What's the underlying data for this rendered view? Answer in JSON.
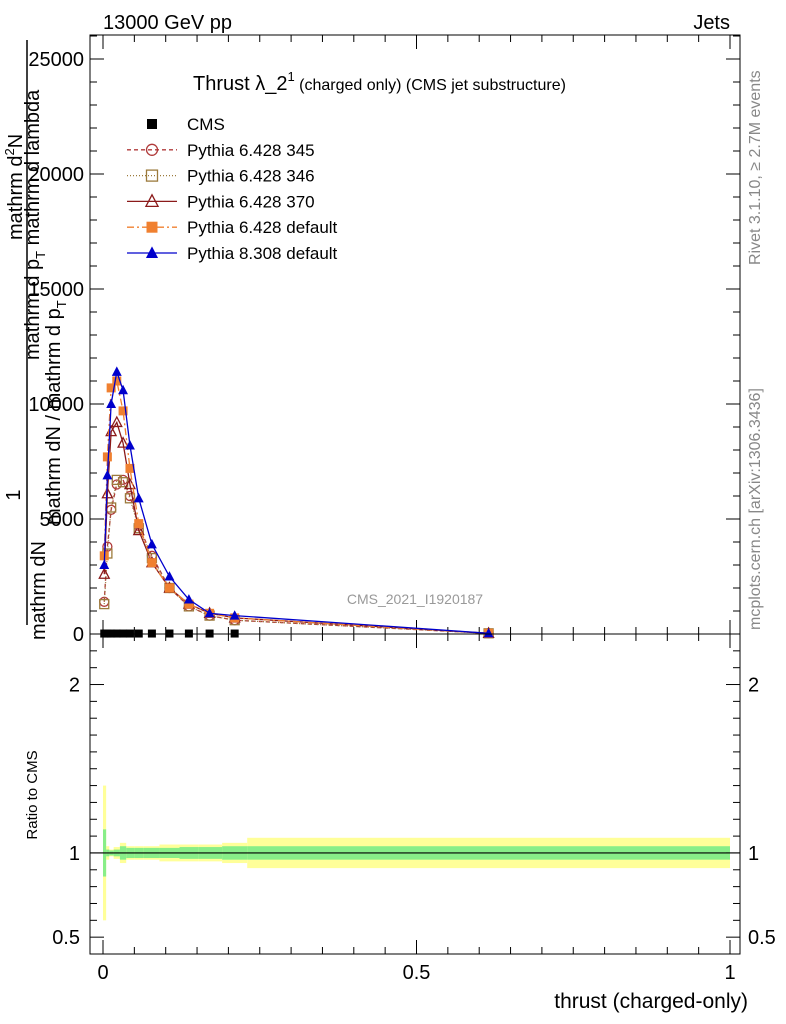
{
  "header": {
    "left": "13000 GeV pp",
    "right": "Jets"
  },
  "side": {
    "rivet": "Rivet 3.1.10, ≥ 2.7M events",
    "mcplots": "mcplots.cern.ch [arXiv:1306.3436]"
  },
  "chart_data": [
    {
      "type": "line",
      "title_main": "Thrust λ_2",
      "title_sup": "1",
      "title_rest": " (charged only) (CMS jet substructure)",
      "watermark": "CMS_2021_I1920187",
      "ylabel_top": "1",
      "ylabel_mid1": "mathrm dN / mathrm d p",
      "ylabel_sub1": "T",
      "ylabel_mid2": "mathrm d",
      "ylabel_sup2": "2",
      "ylabel_mid3": "N",
      "ylabel_mid4": "mathrm d p",
      "ylabel_sub4": "T",
      "ylabel_mid5": " mathrm d lambda",
      "ylabel_den": "mathrm dN",
      "xlim": [
        0,
        1
      ],
      "ylim": [
        0,
        26000
      ],
      "yticks": [
        0,
        5000,
        10000,
        15000,
        20000,
        25000
      ],
      "ytick_labels": [
        "0",
        "5000",
        "10000",
        "15000",
        "20000",
        "25000"
      ],
      "legend_position": "top-left",
      "legend": [
        {
          "label": "CMS",
          "color": "#000000",
          "marker": "square-filled",
          "dash": "none"
        },
        {
          "label": "Pythia 6.428 345",
          "color": "#b03a3a",
          "marker": "circle-open",
          "dash": "4,3"
        },
        {
          "label": "Pythia 6.428 346",
          "color": "#9c7a3c",
          "marker": "square-open",
          "dash": "1,2"
        },
        {
          "label": "Pythia 6.428 370",
          "color": "#8b1a1a",
          "marker": "triangle-open",
          "dash": "none"
        },
        {
          "label": "Pythia 6.428 default",
          "color": "#f08030",
          "marker": "square-filled",
          "dash": "7,3,2,3"
        },
        {
          "label": "Pythia 8.308 default",
          "color": "#0000cc",
          "marker": "triangle-filled",
          "dash": "none"
        }
      ],
      "x": [
        0.002,
        0.007,
        0.013,
        0.022,
        0.032,
        0.043,
        0.057,
        0.078,
        0.106,
        0.137,
        0.17,
        0.21,
        0.615
      ],
      "series": [
        {
          "name": "CMS",
          "values": [
            20,
            20,
            20,
            20,
            20,
            20,
            20,
            20,
            20,
            20,
            20,
            20,
            5
          ]
        },
        {
          "name": "Pythia 6.428 345",
          "values": [
            1400,
            3800,
            5400,
            6500,
            6700,
            6000,
            4700,
            3400,
            2000,
            1200,
            800,
            600,
            30
          ]
        },
        {
          "name": "Pythia 6.428 346",
          "values": [
            1300,
            3500,
            5500,
            6700,
            6600,
            5900,
            4600,
            3300,
            2000,
            1200,
            800,
            600,
            30
          ]
        },
        {
          "name": "Pythia 6.428 370",
          "values": [
            2600,
            6100,
            8800,
            9200,
            8300,
            6500,
            4500,
            3100,
            2000,
            1300,
            900,
            700,
            30
          ]
        },
        {
          "name": "Pythia 6.428 default",
          "values": [
            3400,
            7700,
            10700,
            11000,
            9700,
            7200,
            4800,
            3100,
            2000,
            1300,
            900,
            700,
            30
          ]
        },
        {
          "name": "Pythia 8.308 default",
          "values": [
            3000,
            6900,
            10000,
            11400,
            10600,
            8200,
            5900,
            3900,
            2500,
            1500,
            900,
            800,
            30
          ]
        }
      ]
    },
    {
      "type": "area",
      "ylabel": "Ratio to CMS",
      "xlabel": "thrust (charged-only)",
      "xlim": [
        -0.02,
        1.0
      ],
      "ylim": [
        0.4,
        2.3
      ],
      "xticks": [
        0,
        0.5,
        1
      ],
      "xtick_labels": [
        "0",
        "0.5",
        "1"
      ],
      "yticks": [
        0.5,
        1,
        2
      ],
      "ytick_labels": [
        "0.5",
        "1",
        "2"
      ],
      "bin_edges": [
        0,
        0.005,
        0.01,
        0.017,
        0.027,
        0.037,
        0.05,
        0.065,
        0.09,
        0.122,
        0.152,
        0.19,
        0.23,
        1.0
      ],
      "band_outer": {
        "color": "#ffff99",
        "halfwidth": [
          0.4,
          0.04,
          0.02,
          0.035,
          0.06,
          0.04,
          0.04,
          0.04,
          0.05,
          0.05,
          0.05,
          0.06,
          0.09
        ]
      },
      "band_inner": {
        "color": "#88ee88",
        "halfwidth": [
          0.14,
          0.02,
          0.015,
          0.02,
          0.04,
          0.03,
          0.03,
          0.03,
          0.03,
          0.035,
          0.035,
          0.04,
          0.04
        ]
      }
    }
  ]
}
